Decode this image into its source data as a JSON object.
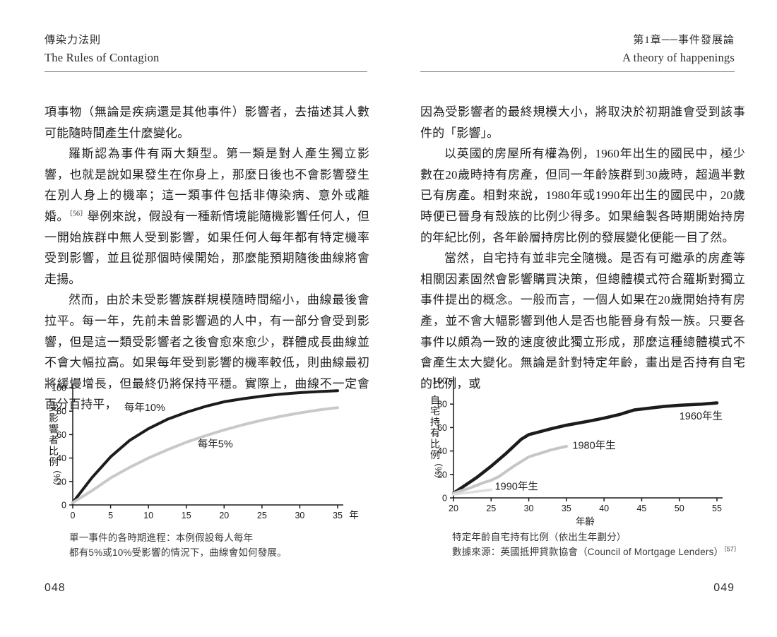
{
  "page_left": {
    "header": {
      "title_zh": "傳染力法則",
      "title_en": "The Rules of Contagion"
    },
    "paragraphs": {
      "p1": "項事物（無論是疾病還是其他事件）影響者，去描述其人數可能隨時間產生什麼變化。",
      "p2_pre": "羅斯認為事件有兩大類型。第一類是對人產生獨立影響，也就是說如果發生在你身上，那麼日後也不會影響發生在別人身上的機率；這一類事件包括非傳染病、意外或離婚。",
      "p2_sup": "〔56〕",
      "p2_post": "舉例來說，假設有一種新情境能隨機影響任何人，但一開始族群中無人受到影響，如果任何人每年都有特定機率受到影響，並且從那個時候開始，那麼能預期隨後曲線將會走揚。",
      "p3": "然而，由於未受影響族群規模隨時間縮小，曲線最後會拉平。每一年，先前未曾影響過的人中，有一部分會受到影響，但是這一類受影響者之後會愈來愈少，群體成長曲線並不會大幅拉高。如果每年受到影響的機率較低，則曲線最初將緩慢增長，但最終仍將保持平穩。實際上，曲線不一定會百分百持平，"
    },
    "caption": [
      "單一事件的各時期進程：本例假設每人每年",
      "都有5%或10%受影響的情況下，曲線會如何發展。"
    ],
    "page_number": "048"
  },
  "page_right": {
    "header": {
      "title_zh": "第1章──事件發展論",
      "title_en": "A theory of happenings"
    },
    "paragraphs": {
      "p1": "因為受影響者的最終規模大小，將取決於初期誰會受到該事件的「影響」。",
      "p2": "以英國的房屋所有權為例，1960年出生的國民中，極少數在20歲時持有房產，但同一年齡族群到30歲時，超過半數已有房產。相對來說，1980年或1990年出生的國民中，20歲時便已晉身有殼族的比例少得多。如果繪製各時期開始持房的年紀比例，各年齡層持房比例的發展變化便能一目了然。",
      "p3": "當然，自宅持有並非完全隨機。是否有可繼承的房產等相關因素固然會影響購買決策，但總體模式符合羅斯對獨立事件提出的概念。一般而言，一個人如果在20歲開始持有房產，並不會大幅影響到他人是否也能晉身有殼一族。只要各事件以頗為一致的速度彼此獨立形成，那麼這種總體模式不會產生太大變化。無論是針對特定年齡，畫出是否持有自宅的比例，或"
    },
    "caption_line1": "特定年齡自宅持有比例（依出生年劃分）",
    "caption2_text": "數據來源：英國抵押貸款協會（Council of Mortgage Lenders）",
    "caption2_sup": "〔57〕",
    "page_number": "049"
  },
  "chart_data": [
    {
      "type": "line",
      "title": "單一事件的各時期進程",
      "ylabel": "受影響者比例",
      "ylabel_unit": "（%）",
      "xlabel": "",
      "x_suffix": "年",
      "xlim": [
        0,
        35
      ],
      "ylim": [
        0,
        100
      ],
      "x_ticks": [
        0,
        5,
        10,
        15,
        20,
        25,
        30,
        35
      ],
      "y_ticks": [
        0,
        20,
        40,
        60,
        80,
        100
      ],
      "axis_color": "#1a1a1a",
      "series": [
        {
          "name": "每年10%",
          "color": "#1c1c1c",
          "stroke_width": 4,
          "points": [
            [
              0,
              2
            ],
            [
              2.5,
              23
            ],
            [
              5,
              41
            ],
            [
              7.5,
              55
            ],
            [
              10,
              65
            ],
            [
              12.5,
              73
            ],
            [
              15,
              79
            ],
            [
              17.5,
              84
            ],
            [
              20,
              88
            ],
            [
              22.5,
              90.6
            ],
            [
              25,
              92.8
            ],
            [
              27.5,
              94.5
            ],
            [
              30,
              95.8
            ],
            [
              32.5,
              96.7
            ],
            [
              35,
              97.5
            ]
          ],
          "label": {
            "x": 6.8,
            "y": 83
          }
        },
        {
          "name": "每年5%",
          "color": "#c9c9c9",
          "stroke_width": 4,
          "points": [
            [
              0,
              2
            ],
            [
              2.5,
              12
            ],
            [
              5,
              23
            ],
            [
              7.5,
              32
            ],
            [
              10,
              40
            ],
            [
              12.5,
              47
            ],
            [
              15,
              53.5
            ],
            [
              17.5,
              59
            ],
            [
              20,
              64
            ],
            [
              22.5,
              68.4
            ],
            [
              25,
              72.3
            ],
            [
              27.5,
              75.6
            ],
            [
              30,
              78.5
            ],
            [
              32.5,
              81
            ],
            [
              35,
              83
            ]
          ],
          "label": {
            "x": 16.5,
            "y": 52
          }
        }
      ]
    },
    {
      "type": "line",
      "title": "特定年齡自宅持有比例（依出生年劃分）",
      "ylabel": "自宅持有比例",
      "ylabel_unit": "（%）",
      "xlabel": "年齡",
      "x_suffix": "",
      "xlim": [
        20,
        55
      ],
      "ylim": [
        0,
        100
      ],
      "x_ticks": [
        20,
        25,
        30,
        35,
        40,
        45,
        50,
        55
      ],
      "y_ticks": [
        0,
        20,
        40,
        60,
        80,
        100
      ],
      "axis_color": "#1a1a1a",
      "series": [
        {
          "name": "1960年生",
          "color": "#1c1c1c",
          "stroke_width": 4.5,
          "points": [
            [
              20,
              4
            ],
            [
              23,
              17
            ],
            [
              25,
              27
            ],
            [
              27,
              38
            ],
            [
              29,
              50
            ],
            [
              30,
              54
            ],
            [
              33,
              59
            ],
            [
              35,
              62
            ],
            [
              38,
              65.5
            ],
            [
              40,
              68
            ],
            [
              42,
              71
            ],
            [
              44,
              75
            ],
            [
              46,
              76.5
            ],
            [
              48,
              78
            ],
            [
              50,
              79
            ],
            [
              53,
              80
            ],
            [
              55,
              81
            ]
          ],
          "label": {
            "x": 50,
            "y": 70
          }
        },
        {
          "name": "1980年生",
          "color": "#c6c6c6",
          "stroke_width": 4,
          "points": [
            [
              20,
              4
            ],
            [
              22,
              8
            ],
            [
              24,
              13
            ],
            [
              25,
              15
            ],
            [
              26,
              18
            ],
            [
              28,
              27
            ],
            [
              30,
              35
            ],
            [
              32,
              39
            ],
            [
              33,
              41
            ],
            [
              35,
              44
            ]
          ],
          "label": {
            "x": 35.8,
            "y": 45
          }
        },
        {
          "name": "1990年生",
          "color": "#dedede",
          "stroke_width": 3.5,
          "points": [
            [
              20,
              3
            ],
            [
              22,
              4.5
            ],
            [
              25,
              7
            ]
          ],
          "label": {
            "x": 25.5,
            "y": 10
          }
        }
      ]
    }
  ]
}
